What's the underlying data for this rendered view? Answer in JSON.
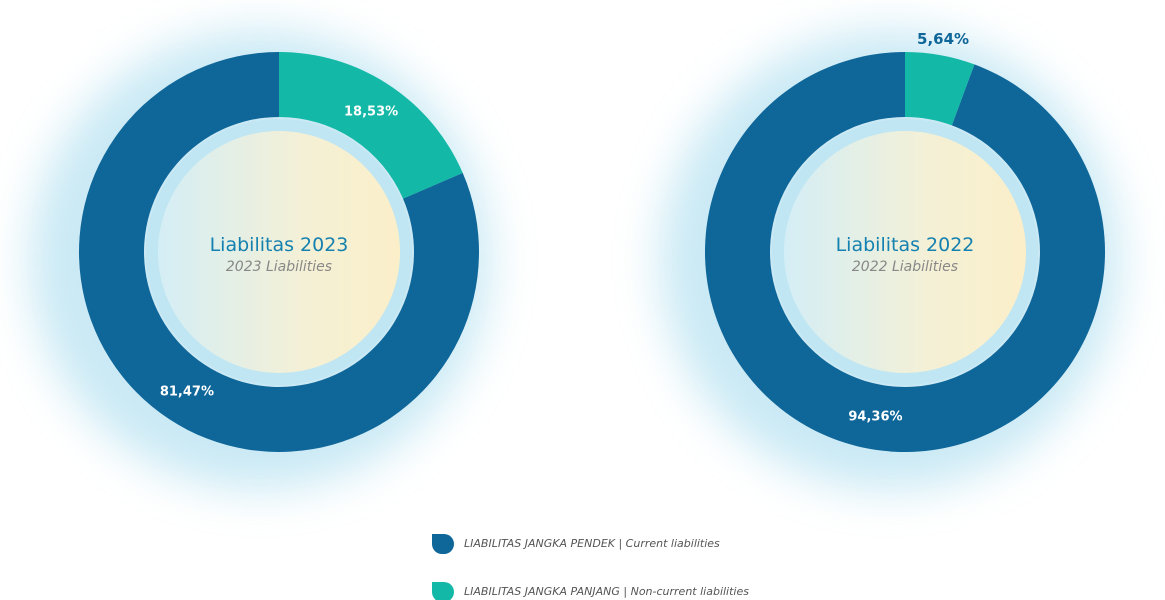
{
  "chart_data": {
    "type": "pie",
    "categories": [
      "LIABILITAS JANGKA PENDEK | Current liabilities",
      "LIABILITAS JANGKA PANJANG | Non-current liabilities"
    ],
    "colors": [
      "#0e6699",
      "#13b8a6"
    ],
    "series": [
      {
        "name": "Liabilitas 2023",
        "subtitle": "2023 Liabilities",
        "values": [
          81.47,
          18.53
        ],
        "value_labels": [
          "81,47%",
          "18,53%"
        ]
      },
      {
        "name": "Liabilitas 2022",
        "subtitle": "2022 Liabilities",
        "values": [
          94.36,
          5.64
        ],
        "value_labels": [
          "94,36%",
          "5,64%"
        ]
      }
    ]
  }
}
